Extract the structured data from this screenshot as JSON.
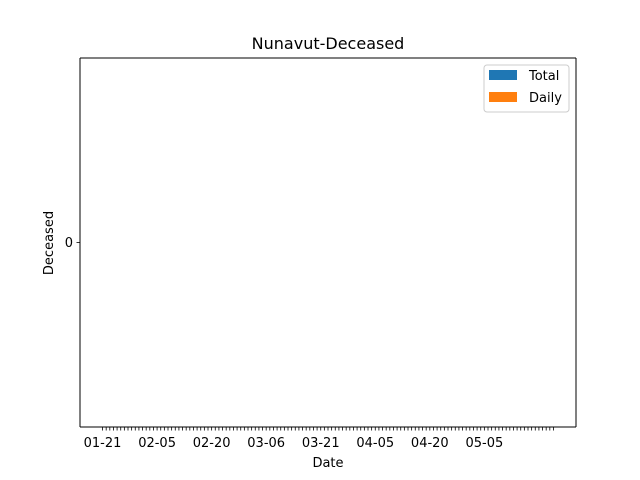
{
  "chart_data": {
    "type": "bar",
    "title": "Nunavut-Deceased",
    "xlabel": "Date",
    "ylabel": "Deceased",
    "x_start": "2020-01-21",
    "x_end": "2020-05-24",
    "x_tick_labels": [
      "01-21",
      "02-05",
      "02-20",
      "03-06",
      "03-21",
      "04-05",
      "04-20",
      "05-05"
    ],
    "y_ticks": [
      0
    ],
    "ylim": [
      -0.055,
      0.055
    ],
    "grid": false,
    "legend_position": "upper right",
    "series": [
      {
        "name": "Total",
        "color": "#1f77b4",
        "values": [
          0
        ]
      },
      {
        "name": "Daily",
        "color": "#ff7f0e",
        "values": [
          0
        ]
      }
    ]
  }
}
